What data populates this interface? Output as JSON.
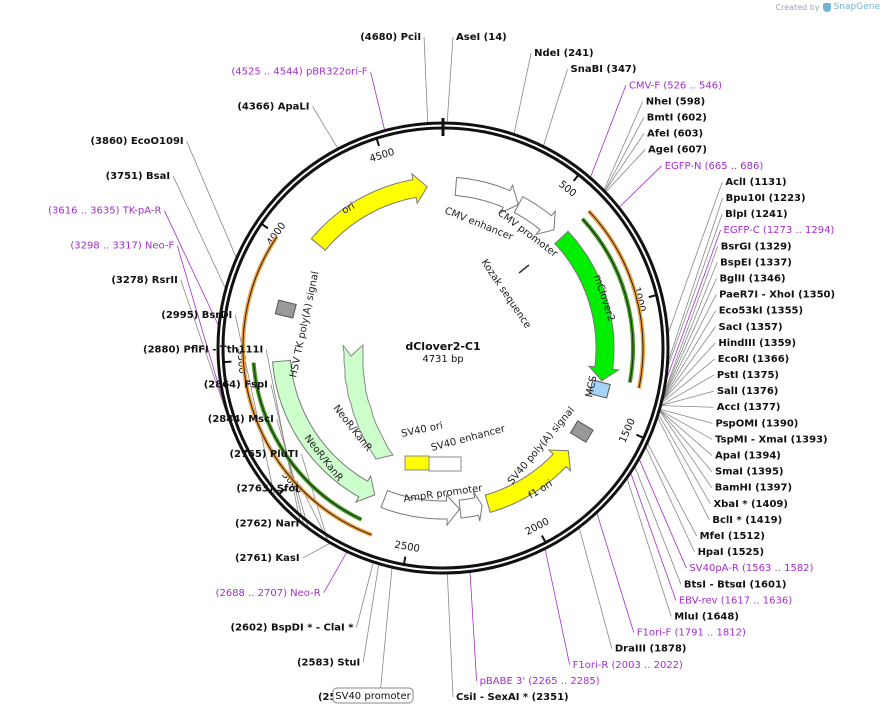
{
  "brand": {
    "created_by": "Created by",
    "name": "SnapGene",
    "icon": "snapgene-logo-icon"
  },
  "plasmid": {
    "name": "dClover2-C1",
    "length_label": "4731 bp",
    "length": 4731
  },
  "colors": {
    "primer": "#a42ccc",
    "feature_arrow_fill": "#ffffff",
    "ori": "#ffff00",
    "mclover": "#00ee00",
    "neo": "#ccffcc",
    "f1ori": "#ffff00",
    "orange_arc": "#f2a13c",
    "green_arc": "#3d9b18"
  },
  "ticks": [
    {
      "pos": 500,
      "label": "500"
    },
    {
      "pos": 1000,
      "label": "1000"
    },
    {
      "pos": 1500,
      "label": "1500"
    },
    {
      "pos": 2000,
      "label": "2000"
    },
    {
      "pos": 2500,
      "label": "2500"
    },
    {
      "pos": 3000,
      "label": "3000"
    },
    {
      "pos": 3500,
      "label": "3500"
    },
    {
      "pos": 4000,
      "label": "4000"
    },
    {
      "pos": 4500,
      "label": "4500"
    }
  ],
  "features": [
    {
      "name": "CMV enhancer",
      "start": 60,
      "end": 364,
      "kind": "arrow",
      "color": "#ffffff",
      "dir": 1
    },
    {
      "name": "CMV promoter",
      "start": 365,
      "end": 568,
      "kind": "arrow",
      "color": "#ffffff",
      "dir": 1
    },
    {
      "name": "mClover2",
      "start": 617,
      "end": 1336,
      "kind": "arrow",
      "color": "#00ee00",
      "dir": 1
    },
    {
      "name": "MCS",
      "start": 1341,
      "end": 1410,
      "kind": "box",
      "color": "#a4d3f5"
    },
    {
      "name": "SV40 poly(A) signal",
      "start": 1530,
      "end": 1651,
      "kind": "box",
      "color": "#999999"
    },
    {
      "name": "f1 ori",
      "start": 1700,
      "end": 2155,
      "kind": "arrow",
      "color": "#ffff00",
      "dir": -1
    },
    {
      "name": "AmpR promoter",
      "start": 2182,
      "end": 2286,
      "kind": "arrow",
      "color": "#ffffff",
      "dir": -1
    },
    {
      "name": "SV40 promoter",
      "start": 2288,
      "end": 2645,
      "kind": "arrow",
      "color": "#ffffff",
      "dir": -1
    },
    {
      "name": "NeoR/KanR",
      "start": 2693,
      "end": 3487,
      "kind": "arrow",
      "color": "#ccffcc",
      "dir": -1
    },
    {
      "name": "HSV TK poly(A) signal",
      "start": 3722,
      "end": 3740,
      "kind": "box",
      "color": "#999999"
    },
    {
      "name": "ori",
      "start": 4070,
      "end": 4658,
      "kind": "arrow",
      "color": "#ffff00",
      "dir": 1
    }
  ],
  "inner_features": [
    {
      "name": "SV40 ori",
      "kind": "box"
    },
    {
      "name": "SV40 enhancer",
      "kind": "box"
    },
    {
      "name": "NeoR/KanR",
      "kind": "arrow"
    },
    {
      "name": "Kozak sequence",
      "kind": "line"
    }
  ],
  "outer_arcs": [
    {
      "start": 615,
      "end": 1335,
      "color": "#f2a13c"
    },
    {
      "start": 620,
      "end": 1320,
      "color": "#3d9b18"
    },
    {
      "start": 2640,
      "end": 3990,
      "color": "#f2a13c"
    },
    {
      "start": 2700,
      "end": 3490,
      "color": "#3d9b18"
    }
  ],
  "labels": [
    {
      "text": "(4680)  PciI",
      "pos": 4680,
      "kind": "site"
    },
    {
      "text": "AseI  (14)",
      "pos": 14,
      "kind": "site"
    },
    {
      "text": "NdeI  (241)",
      "pos": 241,
      "kind": "site"
    },
    {
      "text": "SnaBI  (347)",
      "pos": 347,
      "kind": "site"
    },
    {
      "text": "CMV-F  (526 .. 546)",
      "pos": 536,
      "kind": "primer"
    },
    {
      "text": "NheI  (598)",
      "pos": 598,
      "kind": "site"
    },
    {
      "text": "BmtI  (602)",
      "pos": 602,
      "kind": "site"
    },
    {
      "text": "AfeI  (603)",
      "pos": 603,
      "kind": "site"
    },
    {
      "text": "AgeI  (607)",
      "pos": 607,
      "kind": "site"
    },
    {
      "text": "EGFP-N  (665 .. 686)",
      "pos": 675,
      "kind": "primer"
    },
    {
      "text": "AclI  (1131)",
      "pos": 1131,
      "kind": "site"
    },
    {
      "text": "Bpu10I  (1223)",
      "pos": 1223,
      "kind": "site"
    },
    {
      "text": "BlpI  (1241)",
      "pos": 1241,
      "kind": "site"
    },
    {
      "text": "EGFP-C  (1273 .. 1294)",
      "pos": 1283,
      "kind": "primer"
    },
    {
      "text": "BsrGI  (1329)",
      "pos": 1329,
      "kind": "site"
    },
    {
      "text": "BspEI  (1337)",
      "pos": 1337,
      "kind": "site"
    },
    {
      "text": "BglII  (1346)",
      "pos": 1346,
      "kind": "site"
    },
    {
      "text": "PaeR7I  - XhoI  (1350)",
      "pos": 1350,
      "kind": "site"
    },
    {
      "text": "Eco53kI  (1355)",
      "pos": 1355,
      "kind": "site"
    },
    {
      "text": "SacI  (1357)",
      "pos": 1357,
      "kind": "site"
    },
    {
      "text": "HindIII  (1359)",
      "pos": 1359,
      "kind": "site"
    },
    {
      "text": "EcoRI  (1366)",
      "pos": 1366,
      "kind": "site"
    },
    {
      "text": "PstI  (1375)",
      "pos": 1375,
      "kind": "site"
    },
    {
      "text": "SalI  (1376)",
      "pos": 1376,
      "kind": "site"
    },
    {
      "text": "AccI  (1377)",
      "pos": 1377,
      "kind": "site"
    },
    {
      "text": "PspOMI  (1390)",
      "pos": 1390,
      "kind": "site"
    },
    {
      "text": "TspMI  - XmaI  (1393)",
      "pos": 1393,
      "kind": "site"
    },
    {
      "text": "ApaI  (1394)",
      "pos": 1394,
      "kind": "site"
    },
    {
      "text": "SmaI  (1395)",
      "pos": 1395,
      "kind": "site"
    },
    {
      "text": "BamHI  (1397)",
      "pos": 1397,
      "kind": "site"
    },
    {
      "text": "XbaI *  (1409)",
      "pos": 1409,
      "kind": "site"
    },
    {
      "text": "BclI *  (1419)",
      "pos": 1419,
      "kind": "site"
    },
    {
      "text": "MfeI  (1512)",
      "pos": 1512,
      "kind": "site"
    },
    {
      "text": "HpaI  (1525)",
      "pos": 1525,
      "kind": "site"
    },
    {
      "text": "SV40pA-R  (1563 .. 1582)",
      "pos": 1572,
      "kind": "primer"
    },
    {
      "text": "BtsI  - BtsαI  (1601)",
      "pos": 1601,
      "kind": "site"
    },
    {
      "text": "EBV-rev  (1617 .. 1636)",
      "pos": 1626,
      "kind": "primer"
    },
    {
      "text": "MluI  (1648)",
      "pos": 1648,
      "kind": "site"
    },
    {
      "text": "F1ori-F  (1791 .. 1812)",
      "pos": 1801,
      "kind": "primer"
    },
    {
      "text": "DraIII  (1878)",
      "pos": 1878,
      "kind": "site"
    },
    {
      "text": "F1ori-R  (2003 .. 2022)",
      "pos": 2012,
      "kind": "primer"
    },
    {
      "text": "pBABE 3'  (2265 .. 2285)",
      "pos": 2275,
      "kind": "primer"
    },
    {
      "text": "CsiI  - SexAI *  (2351)",
      "pos": 2351,
      "kind": "site"
    },
    {
      "text": "SV40 promoter",
      "pos": 2460,
      "kind": "feature"
    },
    {
      "text": "(2537)  SfiI",
      "pos": 2537,
      "kind": "site"
    },
    {
      "text": "(2583)  StuI",
      "pos": 2583,
      "kind": "site"
    },
    {
      "text": "(2602)  BspDI *  - ClaI *",
      "pos": 2602,
      "kind": "site"
    },
    {
      "text": "(2688 .. 2707)  Neo-R",
      "pos": 2697,
      "kind": "primer"
    },
    {
      "text": "(2761)  KasI",
      "pos": 2761,
      "kind": "site"
    },
    {
      "text": "(2762)  NarI",
      "pos": 2762,
      "kind": "site"
    },
    {
      "text": "(2763)  SfoI",
      "pos": 2763,
      "kind": "site"
    },
    {
      "text": "(2765)  PluTI",
      "pos": 2765,
      "kind": "site"
    },
    {
      "text": "(2844)  MscI",
      "pos": 2844,
      "kind": "site"
    },
    {
      "text": "(2864)  FspI",
      "pos": 2864,
      "kind": "site"
    },
    {
      "text": "(2880)  PflFI  - Tth111I",
      "pos": 2880,
      "kind": "site"
    },
    {
      "text": "(2995)  BsrDI",
      "pos": 2995,
      "kind": "site"
    },
    {
      "text": "(3278)  RsrII",
      "pos": 3278,
      "kind": "site"
    },
    {
      "text": "(3298 .. 3317)  Neo-F",
      "pos": 3307,
      "kind": "primer"
    },
    {
      "text": "(3616 .. 3635)  TK-pA-R",
      "pos": 3625,
      "kind": "primer"
    },
    {
      "text": "(3751)  BsaI",
      "pos": 3751,
      "kind": "site"
    },
    {
      "text": "(3860)  EcoO109I",
      "pos": 3860,
      "kind": "site"
    },
    {
      "text": "(4366)  ApaLI",
      "pos": 4366,
      "kind": "site"
    },
    {
      "text": "(4525 .. 4544)  pBR322ori-F",
      "pos": 4534,
      "kind": "primer"
    }
  ]
}
